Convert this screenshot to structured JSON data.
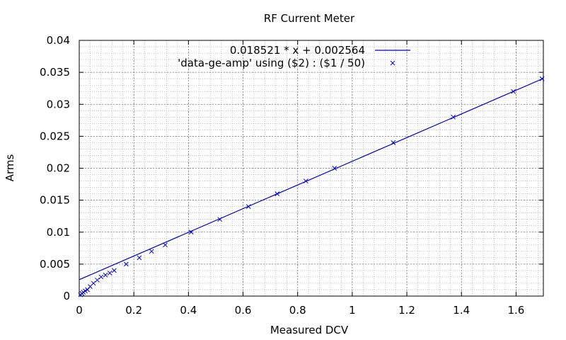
{
  "chart_data": {
    "type": "scatter",
    "title": "RF Current Meter",
    "xlabel": "Measured DCV",
    "ylabel": "Arms",
    "xlim": [
      0,
      1.7
    ],
    "ylim": [
      0,
      0.04
    ],
    "xticks": [
      0,
      0.2,
      0.4,
      0.6,
      0.8,
      1,
      1.2,
      1.4,
      1.6
    ],
    "yticks": [
      0,
      0.005,
      0.01,
      0.015,
      0.02,
      0.025,
      0.03,
      0.035,
      0.04
    ],
    "xtick_labels": [
      "0",
      "0.2",
      "0.4",
      "0.6",
      "0.8",
      "1",
      "1.2",
      "1.4",
      "1.6"
    ],
    "ytick_labels": [
      "0",
      "0.005",
      "0.01",
      "0.015",
      "0.02",
      "0.025",
      "0.03",
      "0.035",
      "0.04"
    ],
    "grid": true,
    "minor_grid": true,
    "legend_position": "top-center",
    "series": [
      {
        "name": "0.018521 * x + 0.002564",
        "kind": "line",
        "color": "#0000cc",
        "slope": 0.018521,
        "intercept": 0.002564
      },
      {
        "name": "'data-ge-amp' using ($2) : ($1 / 50)",
        "kind": "points",
        "marker": "x",
        "color": "#0000cc",
        "x": [
          0.005,
          0.01,
          0.015,
          0.022,
          0.03,
          0.04,
          0.052,
          0.066,
          0.08,
          0.096,
          0.112,
          0.128,
          0.172,
          0.22,
          0.265,
          0.315,
          0.41,
          0.515,
          0.62,
          0.725,
          0.83,
          0.935,
          1.15,
          1.37,
          1.59,
          1.695
        ],
        "y": [
          0.0002,
          0.0004,
          0.0006,
          0.0008,
          0.001,
          0.0015,
          0.002,
          0.0025,
          0.003,
          0.0033,
          0.0036,
          0.004,
          0.005,
          0.006,
          0.007,
          0.008,
          0.01,
          0.012,
          0.014,
          0.016,
          0.018,
          0.02,
          0.024,
          0.028,
          0.032,
          0.034
        ]
      }
    ]
  }
}
